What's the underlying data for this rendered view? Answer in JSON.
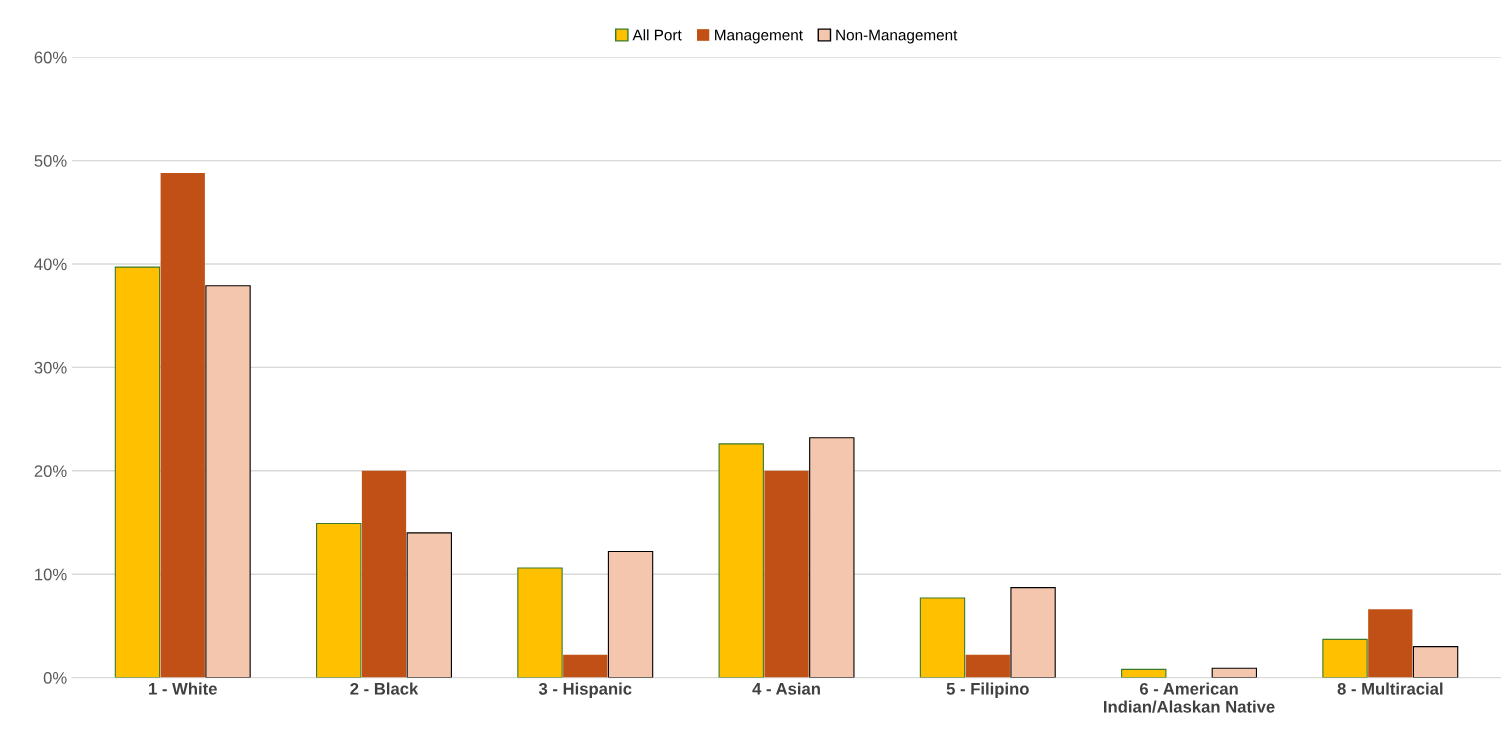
{
  "chart_data": {
    "type": "bar",
    "categories": [
      "1 - White",
      "2 - Black",
      "3 - Hispanic",
      "4 - Asian",
      "5 - Filipino",
      "6 - American\nIndian/Alaskan Native",
      "8 - Multiracial"
    ],
    "series": [
      {
        "name": "All Port",
        "color": "#ffc000",
        "values": [
          39.7,
          14.9,
          10.6,
          22.6,
          7.7,
          0.8,
          3.7
        ]
      },
      {
        "name": "Management",
        "color": "#c05015",
        "values": [
          48.8,
          20.0,
          2.2,
          20.0,
          2.2,
          0,
          6.6
        ]
      },
      {
        "name": "Non-Management",
        "color": "#f5c6ae",
        "values": [
          37.9,
          14.0,
          12.2,
          23.2,
          8.7,
          0.9,
          3.0
        ]
      }
    ],
    "ylim": [
      0,
      60
    ],
    "yticks": [
      {
        "value": 0,
        "label": "0%"
      },
      {
        "value": 10,
        "label": "10%"
      },
      {
        "value": 20,
        "label": "20%"
      },
      {
        "value": 30,
        "label": "30%"
      },
      {
        "value": 40,
        "label": "40%"
      },
      {
        "value": 50,
        "label": "50%"
      },
      {
        "value": 60,
        "label": "60%"
      }
    ],
    "grid": "y",
    "legend": "top"
  }
}
